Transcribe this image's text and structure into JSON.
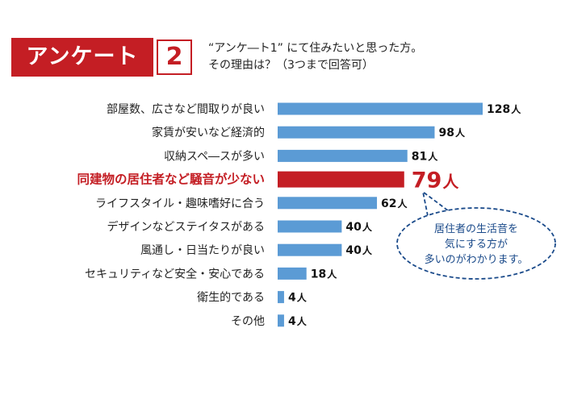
{
  "header": {
    "badge_label": "アンケート",
    "badge_number": "2",
    "question_line1": "“アンケ―ト1” にて住みたいと思った方。",
    "question_line2": "その理由は？（3つまで回答可）"
  },
  "chart_data": {
    "type": "bar",
    "orientation": "horizontal",
    "categories": [
      "部屋数、広さなど間取りが良い",
      "家賃が安いなど経済的",
      "収納スペ―スが多い",
      "同建物の居住者など騒音が少ない",
      "ライフスタイル・趣味嗜好に合う",
      "デザインなどステイタスがある",
      "風通し・日当たりが良い",
      "セキュリティなど安全・安心である",
      "衛生的である",
      "その他"
    ],
    "values": [
      128,
      98,
      81,
      79,
      62,
      40,
      40,
      18,
      4,
      4
    ],
    "value_unit": "人",
    "highlight_index": 3,
    "xlim": [
      0,
      128
    ],
    "grid": false,
    "colors": {
      "bar": "#5b9bd5",
      "highlight": "#c41e24"
    }
  },
  "callout": {
    "lines": [
      "居住者の生活音を",
      "気にする方が",
      "多いのがわかります。"
    ],
    "border_color": "#1a4a8a"
  }
}
